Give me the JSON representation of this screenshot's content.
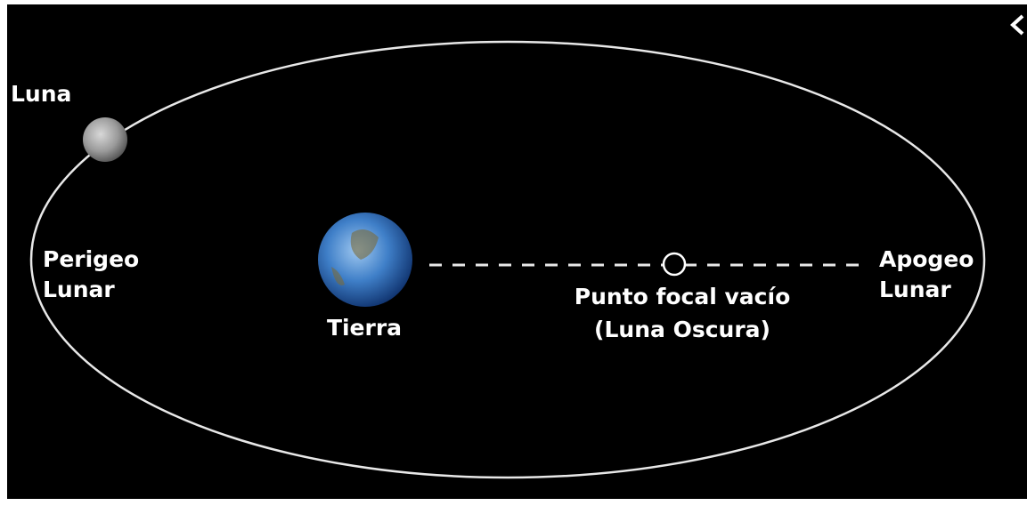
{
  "labels": {
    "moon": "Luna",
    "perigee": [
      "Perigeo",
      "Lunar"
    ],
    "earth": "Tierra",
    "empty_focus": [
      "Punto focal vacío",
      "(Luna Oscura)"
    ],
    "apogee": [
      "Apogeo",
      "Lunar"
    ]
  }
}
